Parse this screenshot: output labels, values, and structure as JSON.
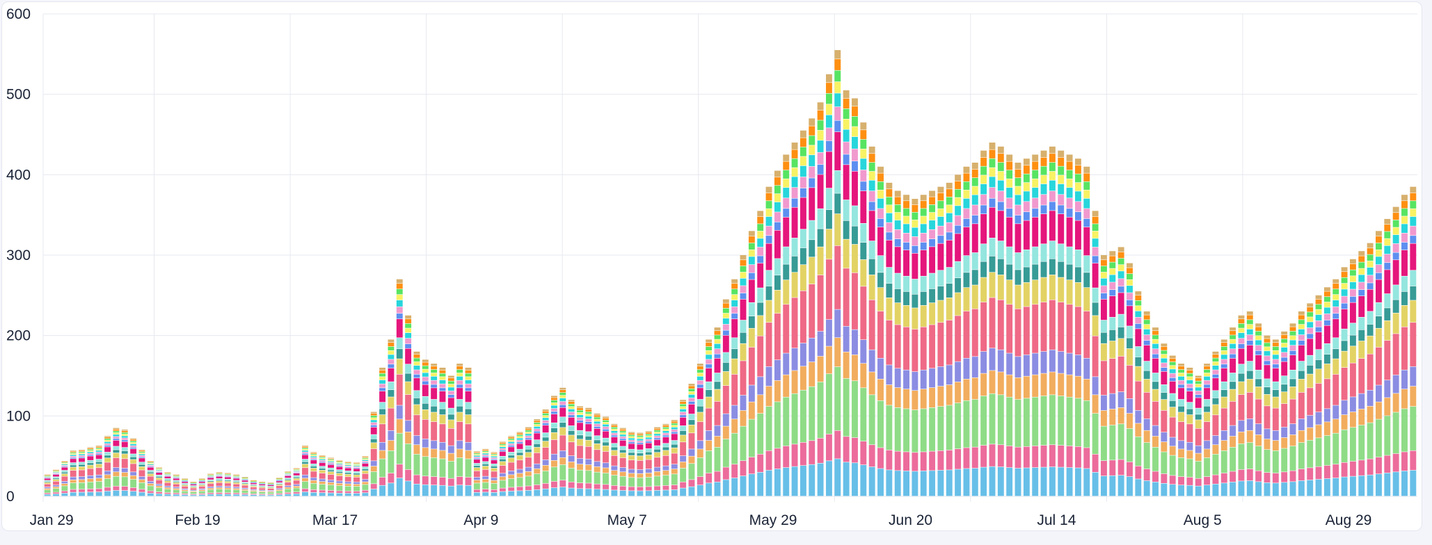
{
  "chart_data": {
    "type": "bar",
    "stacked": true,
    "title": "",
    "xlabel": "",
    "ylabel": "",
    "ylim": [
      0,
      600
    ],
    "y_ticks": [
      0,
      100,
      200,
      300,
      400,
      500,
      600
    ],
    "x_start": "Jan 29",
    "x_tick_labels": [
      "Jan 29",
      "Feb 19",
      "Mar 17",
      "Apr 9",
      "May 7",
      "May 29",
      "Jun 20",
      "Jul 14",
      "Aug 5",
      "Aug 29"
    ],
    "grid": true,
    "legend": "none",
    "series_colors": [
      "#67bfe8",
      "#ec6c9b",
      "#8fdc87",
      "#f2ad5e",
      "#8b8de3",
      "#ef6a86",
      "#e3d365",
      "#379b96",
      "#94e6df",
      "#e5167c",
      "#5d8ff0",
      "#f199ce",
      "#27d6dc",
      "#f8f264",
      "#57e462",
      "#ff8f11",
      "#d7b06d"
    ],
    "series_weights": [
      0.082,
      0.062,
      0.14,
      0.064,
      0.062,
      0.14,
      0.07,
      0.045,
      0.05,
      0.085,
      0.025,
      0.03,
      0.03,
      0.025,
      0.025,
      0.025,
      0.02
    ],
    "totals": [
      27,
      33,
      44,
      57,
      58,
      61,
      63,
      75,
      85,
      83,
      72,
      58,
      44,
      36,
      30,
      27,
      22,
      18,
      22,
      28,
      30,
      29,
      27,
      24,
      20,
      18,
      17,
      23,
      31,
      35,
      63,
      55,
      51,
      48,
      45,
      43,
      42,
      50,
      105,
      160,
      195,
      270,
      225,
      180,
      170,
      165,
      160,
      150,
      165,
      160,
      56,
      59,
      55,
      68,
      75,
      80,
      86,
      96,
      108,
      125,
      135,
      120,
      112,
      110,
      103,
      99,
      90,
      85,
      80,
      79,
      81,
      86,
      90,
      95,
      120,
      140,
      165,
      195,
      210,
      245,
      270,
      300,
      330,
      355,
      385,
      405,
      425,
      440,
      455,
      470,
      490,
      525,
      555,
      505,
      495,
      465,
      435,
      410,
      390,
      380,
      375,
      370,
      375,
      380,
      385,
      390,
      400,
      410,
      415,
      430,
      440,
      435,
      425,
      415,
      420,
      425,
      430,
      435,
      430,
      425,
      420,
      410,
      355,
      300,
      305,
      310,
      290,
      255,
      230,
      210,
      190,
      175,
      165,
      160,
      150,
      165,
      180,
      195,
      210,
      225,
      230,
      215,
      200,
      195,
      205,
      215,
      230,
      240,
      250,
      260,
      270,
      285,
      295,
      305,
      315,
      330,
      345,
      360,
      375,
      385
    ]
  }
}
